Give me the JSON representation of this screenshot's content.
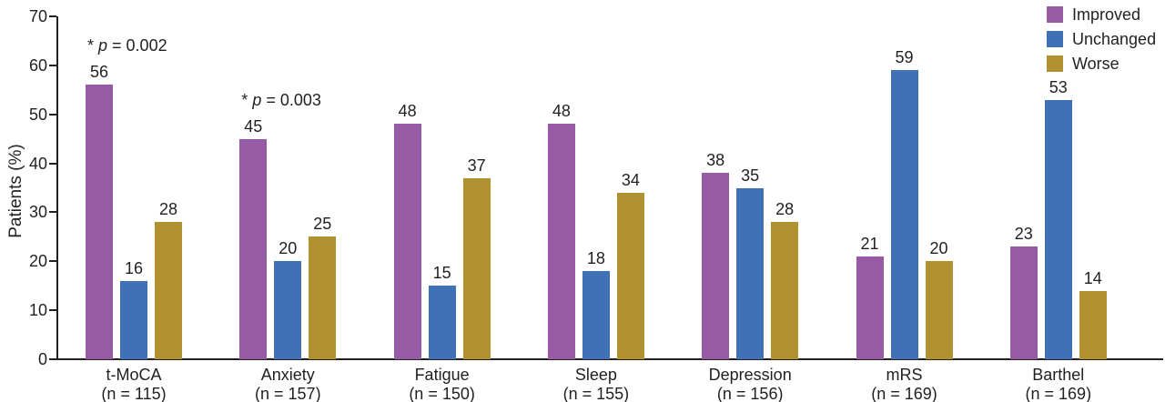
{
  "colors": {
    "improved": "#975BA5",
    "unchanged": "#4070B5",
    "worse": "#B1902F",
    "axis": "#231F20",
    "text": "#231F20",
    "background": "#FFFFFF"
  },
  "legend": {
    "position": "top-right",
    "entries": [
      "Improved",
      "Unchanged",
      "Worse"
    ]
  },
  "chart_data": {
    "type": "bar",
    "title": "",
    "xlabel": "",
    "ylabel": "Patients (%)",
    "ylim": [
      0,
      70
    ],
    "yticks": [
      0,
      10,
      20,
      30,
      40,
      50,
      60,
      70
    ],
    "grid": false,
    "legend_position": "top-right",
    "categories": [
      {
        "label": "t-MoCA",
        "sublabel": "(n = 115)"
      },
      {
        "label": "Anxiety",
        "sublabel": "(n = 157)"
      },
      {
        "label": "Fatigue",
        "sublabel": "(n = 150)"
      },
      {
        "label": "Sleep",
        "sublabel": "(n = 155)"
      },
      {
        "label": "Depression",
        "sublabel": "(n = 156)"
      },
      {
        "label": "mRS",
        "sublabel": "(n = 169)"
      },
      {
        "label": "Barthel",
        "sublabel": "(n = 169)"
      }
    ],
    "series": [
      {
        "name": "Improved",
        "color": "#975BA5",
        "values": [
          56,
          45,
          48,
          48,
          38,
          21,
          23
        ]
      },
      {
        "name": "Unchanged",
        "color": "#4070B5",
        "values": [
          16,
          20,
          15,
          18,
          35,
          59,
          53
        ]
      },
      {
        "name": "Worse",
        "color": "#B1902F",
        "values": [
          28,
          25,
          37,
          34,
          28,
          20,
          14
        ]
      }
    ],
    "annotations": [
      {
        "category_index": 0,
        "star": "*",
        "symbol": "p",
        "value": "= 0.002"
      },
      {
        "category_index": 1,
        "star": "*",
        "symbol": "p",
        "value": "= 0.003"
      }
    ]
  }
}
